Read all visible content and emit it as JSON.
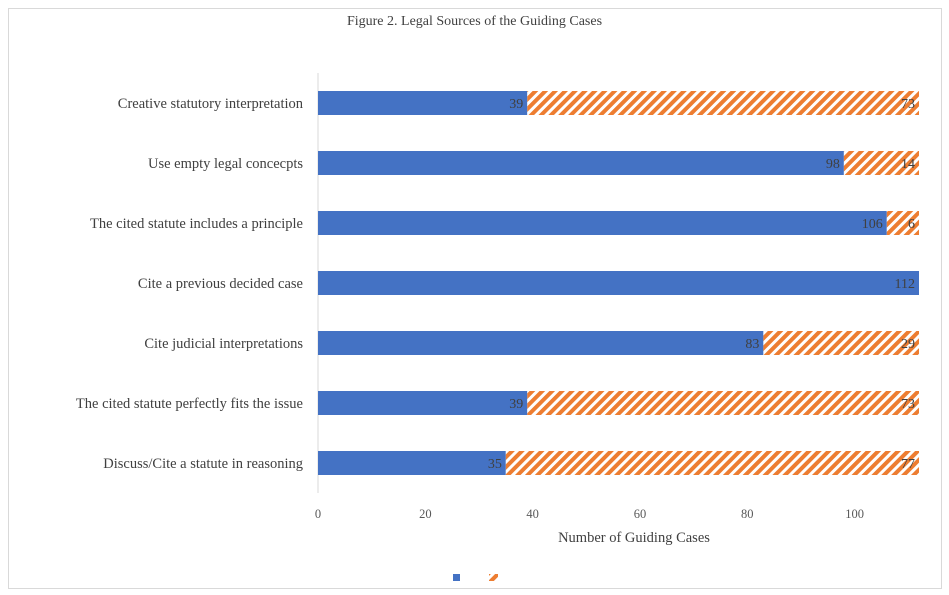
{
  "chart_data": {
    "type": "bar",
    "orientation": "horizontal",
    "stacked": true,
    "title": "Figure 2. Legal Sources of the Guiding Cases",
    "xlabel": "Number of Guiding Cases",
    "ylabel": "",
    "xlim": [
      0,
      112
    ],
    "xticks": [
      0,
      20,
      40,
      60,
      80,
      100
    ],
    "grid": false,
    "legend_position": "bottom",
    "categories": [
      "Creative statutory interpretation",
      "Use empty legal concecpts",
      "The cited statute includes a principle",
      "Cite a previous decided case",
      "Cite judicial interpretations",
      "The cited statute perfectly fits the issue",
      "Discuss/Cite a statute in reasoning"
    ],
    "series": [
      {
        "name": "",
        "color": "#4472C4",
        "pattern": "solid",
        "values": [
          39,
          98,
          106,
          112,
          83,
          39,
          35
        ]
      },
      {
        "name": "",
        "color": "#ED7D31",
        "pattern": "diagonal-stripes",
        "values": [
          73,
          14,
          6,
          0,
          29,
          73,
          77
        ]
      }
    ]
  }
}
